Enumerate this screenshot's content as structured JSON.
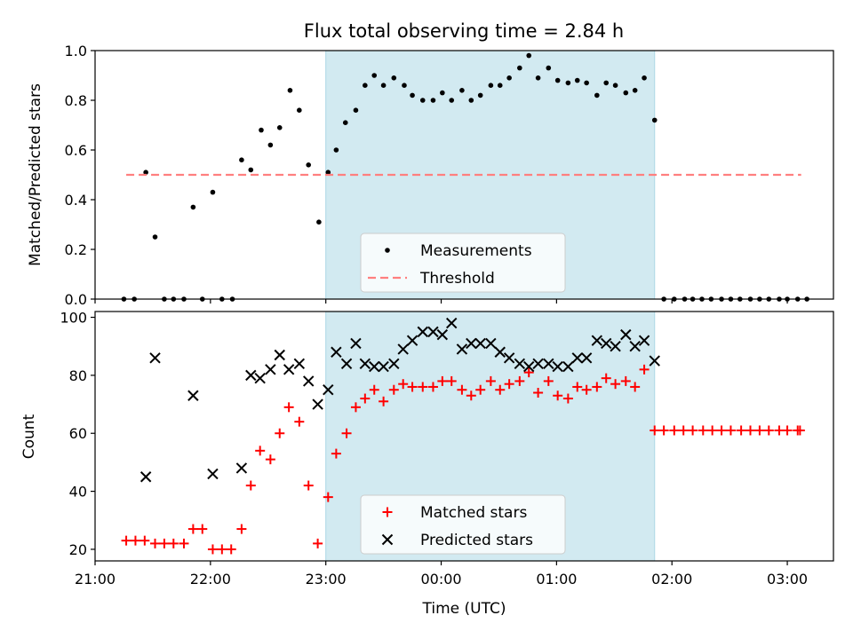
{
  "chart_data": [
    {
      "type": "scatter",
      "title": "Flux total observing time = 2.84 h",
      "xlabel": "",
      "ylabel": "Matched/Predicted stars",
      "ylim": [
        0,
        1.0
      ],
      "yticks": [
        "0.0",
        "0.2",
        "0.4",
        "0.6",
        "0.8",
        "1.0"
      ],
      "xlim_hours": [
        21.0,
        27.4
      ],
      "shaded_interval_hours": [
        23.0,
        25.85
      ],
      "shade_color": "#add8e6",
      "legend": {
        "placement": "lower-center",
        "entries": [
          "Measurements",
          "Threshold"
        ]
      },
      "series": [
        {
          "name": "Measurements",
          "style": "dot",
          "color": "#000000",
          "x": [
            21.25,
            21.34,
            21.44,
            21.52,
            21.6,
            21.68,
            21.77,
            21.85,
            21.93,
            22.02,
            22.1,
            22.19,
            22.27,
            22.35,
            22.44,
            22.52,
            22.6,
            22.69,
            22.77,
            22.85,
            22.94,
            23.02,
            23.09,
            23.17,
            23.26,
            23.34,
            23.42,
            23.5,
            23.59,
            23.68,
            23.75,
            23.84,
            23.93,
            24.01,
            24.09,
            24.18,
            24.26,
            24.34,
            24.43,
            24.51,
            24.59,
            24.68,
            24.76,
            24.84,
            24.93,
            25.01,
            25.1,
            25.18,
            25.26,
            25.35,
            25.43,
            25.51,
            25.6,
            25.68,
            25.76,
            25.85,
            25.93,
            26.02,
            26.11,
            26.18,
            26.26,
            26.34,
            26.43,
            26.51,
            26.59,
            26.68,
            26.76,
            26.84,
            26.93,
            27.0,
            27.09,
            27.17
          ],
          "y": [
            0.0,
            0.0,
            0.51,
            0.25,
            0.0,
            0.0,
            0.0,
            0.37,
            0.0,
            0.43,
            0.0,
            0.0,
            0.56,
            0.52,
            0.68,
            0.62,
            0.69,
            0.84,
            0.76,
            0.54,
            0.31,
            0.51,
            0.6,
            0.71,
            0.76,
            0.86,
            0.9,
            0.86,
            0.89,
            0.86,
            0.82,
            0.8,
            0.8,
            0.83,
            0.8,
            0.84,
            0.8,
            0.82,
            0.86,
            0.86,
            0.89,
            0.93,
            0.98,
            0.89,
            0.93,
            0.88,
            0.87,
            0.88,
            0.87,
            0.82,
            0.87,
            0.86,
            0.83,
            0.84,
            0.89,
            0.72,
            0.0,
            0.0,
            0.0,
            0.0,
            0.0,
            0.0,
            0.0,
            0.0,
            0.0,
            0.0,
            0.0,
            0.0,
            0.0,
            0.0,
            0.0,
            0.0
          ]
        },
        {
          "name": "Threshold",
          "style": "dashed-line",
          "color": "#ff7f7f",
          "x": [
            21.27,
            27.12
          ],
          "y": [
            0.5,
            0.5
          ]
        }
      ]
    },
    {
      "type": "scatter",
      "title": "",
      "xlabel": "Time (UTC)",
      "ylabel": "Count",
      "ylim": [
        16,
        102
      ],
      "yticks": [
        "20",
        "40",
        "60",
        "80",
        "100"
      ],
      "xlim_hours": [
        21.0,
        27.4
      ],
      "xticks": [
        "21:00",
        "22:00",
        "23:00",
        "00:00",
        "01:00",
        "02:00",
        "03:00"
      ],
      "shaded_interval_hours": [
        23.0,
        25.85
      ],
      "shade_color": "#add8e6",
      "legend": {
        "placement": "lower-center",
        "entries": [
          "Matched stars",
          "Predicted stars"
        ]
      },
      "series": [
        {
          "name": "Matched stars",
          "style": "plus",
          "color": "#ff0000",
          "x": [
            21.27,
            21.35,
            21.43,
            21.52,
            21.6,
            21.68,
            21.77,
            21.85,
            21.93,
            22.02,
            22.1,
            22.18,
            22.27,
            22.35,
            22.43,
            22.52,
            22.6,
            22.68,
            22.77,
            22.85,
            22.93,
            23.02,
            23.09,
            23.18,
            23.26,
            23.34,
            23.42,
            23.5,
            23.59,
            23.67,
            23.75,
            23.84,
            23.93,
            24.01,
            24.09,
            24.18,
            24.26,
            24.34,
            24.43,
            24.51,
            24.59,
            24.68,
            24.76,
            24.84,
            24.93,
            25.01,
            25.1,
            25.18,
            25.26,
            25.35,
            25.43,
            25.51,
            25.6,
            25.68,
            25.76,
            25.85,
            25.93,
            26.02,
            26.1,
            26.18,
            26.27,
            26.35,
            26.43,
            26.51,
            26.6,
            26.68,
            26.76,
            26.84,
            26.93,
            27.0,
            27.09,
            27.11
          ],
          "y": [
            23,
            23,
            23,
            22,
            22,
            22,
            22,
            27,
            27,
            20,
            20,
            20,
            27,
            42,
            54,
            51,
            60,
            69,
            64,
            42,
            22,
            38,
            53,
            60,
            69,
            72,
            75,
            71,
            75,
            77,
            76,
            76,
            76,
            78,
            78,
            75,
            73,
            75,
            78,
            75,
            77,
            78,
            81,
            74,
            78,
            73,
            72,
            76,
            75,
            76,
            79,
            77,
            78,
            76,
            82,
            61,
            61,
            61,
            61,
            61,
            61,
            61,
            61,
            61,
            61,
            61,
            61,
            61,
            61,
            61,
            61,
            61
          ]
        },
        {
          "name": "Predicted stars",
          "style": "cross",
          "color": "#000000",
          "x": [
            21.44,
            21.52,
            21.85,
            22.02,
            22.27,
            22.35,
            22.43,
            22.52,
            22.6,
            22.68,
            22.77,
            22.85,
            22.93,
            23.02,
            23.09,
            23.18,
            23.26,
            23.34,
            23.42,
            23.5,
            23.59,
            23.67,
            23.75,
            23.84,
            23.93,
            24.01,
            24.09,
            24.18,
            24.26,
            24.34,
            24.43,
            24.51,
            24.59,
            24.68,
            24.76,
            24.84,
            24.93,
            25.01,
            25.1,
            25.18,
            25.26,
            25.35,
            25.43,
            25.51,
            25.6,
            25.68,
            25.76,
            25.85
          ],
          "y": [
            45,
            86,
            73,
            46,
            48,
            80,
            79,
            82,
            87,
            82,
            84,
            78,
            70,
            75,
            88,
            84,
            91,
            84,
            83,
            83,
            84,
            89,
            92,
            95,
            95,
            94,
            98,
            89,
            91,
            91,
            91,
            88,
            86,
            84,
            83,
            84,
            84,
            83,
            83,
            86,
            86,
            92,
            91,
            90,
            94,
            90,
            92,
            85
          ]
        }
      ]
    }
  ]
}
